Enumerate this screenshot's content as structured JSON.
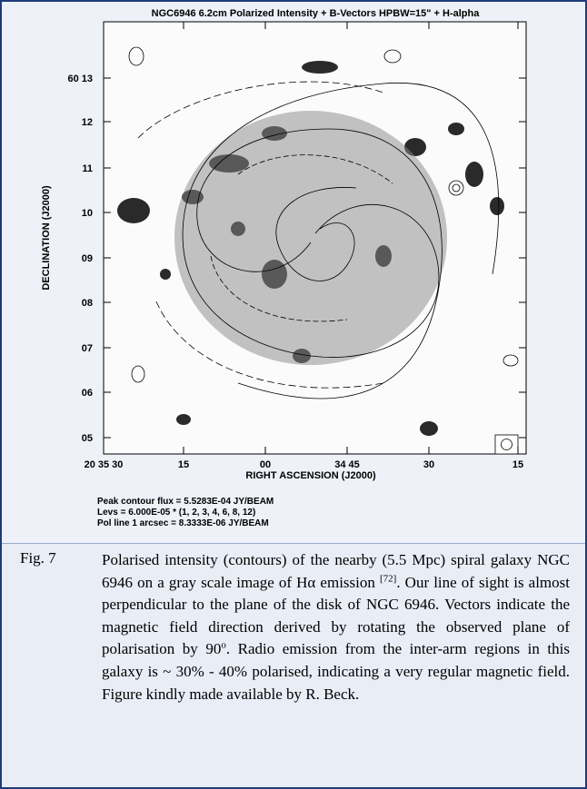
{
  "figure": {
    "title": "NGC6946   6.2cm   Polarized Intensity + B-Vectors   HPBW=15\"  + H-alpha",
    "y_axis_label": "DECLINATION (J2000)",
    "x_axis_label": "RIGHT ASCENSION (J2000)",
    "y_tick_labels": [
      "60 13",
      "12",
      "11",
      "10",
      "09",
      "08",
      "07",
      "06",
      "05"
    ],
    "x_tick_labels": [
      "20 35 30",
      "15",
      "00",
      "34 45",
      "30",
      "15"
    ],
    "notes": [
      "Peak contour flux =  5.5283E-04 JY/BEAM",
      "Levs = 6.000E-05 * (1, 2, 3, 4, 6, 8, 12)",
      "Pol line 1 arcsec =  8.3333E-06 JY/BEAM"
    ]
  },
  "caption": {
    "label": "Fig. 7",
    "text_1": "Polarised intensity (contours) of the nearby (5.5 Mpc) spiral galaxy NGC 6946 on a gray scale image of Hα emission ",
    "ref": "[72]",
    "text_2": ". Our line of sight is almost perpendicular to the plane of the disk of NGC 6946. Vectors indicate the magnetic field direction derived by rotating the observed plane of polarisation by 90",
    "degree": "o",
    "text_3": ". Radio emission from the inter-arm regions in this galaxy is ~ 30% - 40% polarised, indicating a very regular magnetic field. Figure kindly made available by R. Beck."
  }
}
